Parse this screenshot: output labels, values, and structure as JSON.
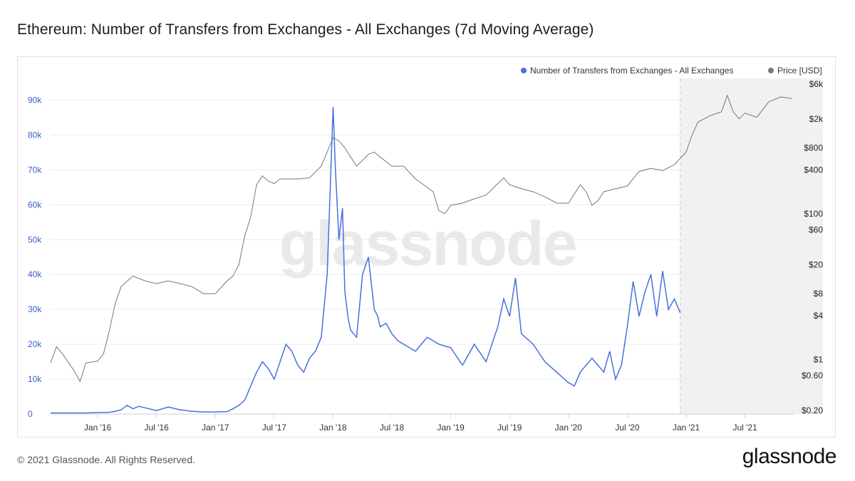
{
  "title": "Ethereum: Number of Transfers from Exchanges - All Exchanges (7d Moving Average)",
  "footer": {
    "copyright": "© 2021 Glassnode. All Rights Reserved.",
    "logo": "glassnode"
  },
  "colors": {
    "transfers": "#4a6fdc",
    "price": "#777777",
    "legend_price_dot": "#7a7a7a",
    "projection_shade": "#f1f1f1"
  },
  "chart_data": {
    "type": "line",
    "watermark": "glassnode",
    "legend_position": "top-right",
    "legend": [
      {
        "name": "Number of Transfers from Exchanges - All Exchanges",
        "color": "#4a6fdc"
      },
      {
        "name": "Price [USD]",
        "color": "#7a7a7a"
      }
    ],
    "x_ticks": [
      "Jan '16",
      "Jul '16",
      "Jan '17",
      "Jul '17",
      "Jan '18",
      "Jul '18",
      "Jan '19",
      "Jul '19",
      "Jan '20",
      "Jul '20",
      "Jan '21",
      "Jul '21"
    ],
    "x_tick_years": [
      2016.0,
      2016.5,
      2017.0,
      2017.5,
      2018.0,
      2018.5,
      2019.0,
      2019.5,
      2020.0,
      2020.5,
      2021.0,
      2021.5
    ],
    "x_range": [
      2015.6,
      2021.92
    ],
    "y_left_ticks": [
      "0",
      "10k",
      "20k",
      "30k",
      "40k",
      "50k",
      "60k",
      "70k",
      "80k",
      "90k"
    ],
    "y_left_tick_values": [
      0,
      10000,
      20000,
      30000,
      40000,
      50000,
      60000,
      70000,
      80000,
      90000
    ],
    "y_left_range": [
      0,
      95000
    ],
    "y_right_ticks": [
      "$0.20",
      "$0.60",
      "$1",
      "$4",
      "$8",
      "$20",
      "$60",
      "$100",
      "$400",
      "$800",
      "$2k",
      "$6k"
    ],
    "y_right_tick_values": [
      0.2,
      0.6,
      1,
      4,
      8,
      20,
      60,
      100,
      400,
      800,
      2000,
      6000
    ],
    "y_right_scale": "log",
    "series": [
      {
        "name": "Number of Transfers from Exchanges - All Exchanges",
        "axis": "left",
        "x": [
          2015.6,
          2015.7,
          2015.8,
          2015.9,
          2016.0,
          2016.1,
          2016.15,
          2016.2,
          2016.25,
          2016.3,
          2016.35,
          2016.4,
          2016.5,
          2016.55,
          2016.6,
          2016.7,
          2016.8,
          2016.9,
          2017.0,
          2017.1,
          2017.15,
          2017.2,
          2017.25,
          2017.3,
          2017.35,
          2017.4,
          2017.45,
          2017.5,
          2017.55,
          2017.6,
          2017.65,
          2017.7,
          2017.75,
          2017.8,
          2017.85,
          2017.9,
          2017.95,
          2018.0,
          2018.02,
          2018.05,
          2018.08,
          2018.1,
          2018.13,
          2018.15,
          2018.2,
          2018.25,
          2018.3,
          2018.35,
          2018.38,
          2018.4,
          2018.45,
          2018.5,
          2018.55,
          2018.6,
          2018.7,
          2018.8,
          2018.9,
          2019.0,
          2019.1,
          2019.2,
          2019.3,
          2019.4,
          2019.45,
          2019.5,
          2019.55,
          2019.6,
          2019.7,
          2019.8,
          2019.9,
          2020.0,
          2020.05,
          2020.1,
          2020.2,
          2020.3,
          2020.35,
          2020.4,
          2020.45,
          2020.5,
          2020.55,
          2020.6,
          2020.65,
          2020.7,
          2020.75,
          2020.8,
          2020.85,
          2020.9,
          2020.95
        ],
        "values": [
          300,
          300,
          300,
          300,
          400,
          500,
          800,
          1200,
          2500,
          1500,
          2200,
          1800,
          1000,
          1500,
          2000,
          1200,
          800,
          600,
          600,
          700,
          1500,
          2500,
          4000,
          8000,
          12000,
          15000,
          13000,
          10000,
          15000,
          20000,
          18000,
          14000,
          12000,
          16000,
          18000,
          22000,
          40000,
          88000,
          70000,
          50000,
          59000,
          35000,
          27000,
          24000,
          22000,
          40000,
          45000,
          30000,
          28000,
          25000,
          26000,
          23000,
          21000,
          20000,
          18000,
          22000,
          20000,
          19000,
          14000,
          20000,
          15000,
          25000,
          33000,
          28000,
          39000,
          23000,
          20000,
          15000,
          12000,
          9000,
          8000,
          12000,
          16000,
          12000,
          18000,
          10000,
          14000,
          25000,
          38000,
          28000,
          35000,
          40000,
          28000,
          41000,
          30000,
          33000,
          29000
        ]
      },
      {
        "name": "Price [USD]",
        "axis": "right",
        "x": [
          2015.6,
          2015.65,
          2015.7,
          2015.8,
          2015.85,
          2015.9,
          2016.0,
          2016.05,
          2016.1,
          2016.15,
          2016.2,
          2016.3,
          2016.4,
          2016.5,
          2016.6,
          2016.7,
          2016.8,
          2016.9,
          2017.0,
          2017.1,
          2017.15,
          2017.2,
          2017.25,
          2017.3,
          2017.35,
          2017.4,
          2017.45,
          2017.5,
          2017.55,
          2017.6,
          2017.7,
          2017.8,
          2017.9,
          2017.95,
          2018.0,
          2018.05,
          2018.1,
          2018.15,
          2018.2,
          2018.3,
          2018.35,
          2018.4,
          2018.5,
          2018.6,
          2018.7,
          2018.8,
          2018.85,
          2018.9,
          2018.95,
          2019.0,
          2019.1,
          2019.2,
          2019.3,
          2019.4,
          2019.45,
          2019.5,
          2019.6,
          2019.7,
          2019.8,
          2019.9,
          2020.0,
          2020.1,
          2020.15,
          2020.2,
          2020.25,
          2020.3,
          2020.4,
          2020.5,
          2020.6,
          2020.7,
          2020.8,
          2020.9,
          2021.0,
          2021.05,
          2021.1,
          2021.2,
          2021.3,
          2021.35,
          2021.4,
          2021.45,
          2021.5,
          2021.6,
          2021.7,
          2021.8,
          2021.9
        ],
        "values": [
          0.9,
          1.5,
          1.2,
          0.7,
          0.5,
          0.9,
          0.95,
          1.2,
          2.5,
          6,
          10,
          14,
          12,
          11,
          12,
          11,
          10,
          8,
          8,
          12,
          14,
          20,
          50,
          90,
          250,
          330,
          280,
          260,
          300,
          300,
          300,
          310,
          450,
          700,
          1100,
          1000,
          800,
          600,
          450,
          650,
          700,
          600,
          450,
          450,
          300,
          230,
          200,
          110,
          100,
          130,
          140,
          160,
          180,
          260,
          310,
          250,
          220,
          200,
          170,
          140,
          140,
          250,
          200,
          130,
          150,
          200,
          220,
          240,
          380,
          420,
          390,
          470,
          700,
          1200,
          1800,
          2200,
          2500,
          4200,
          2500,
          2000,
          2400,
          2100,
          3400,
          4000,
          3800
        ]
      }
    ],
    "shaded_region": {
      "from": 2020.95,
      "to": 2021.92
    }
  }
}
